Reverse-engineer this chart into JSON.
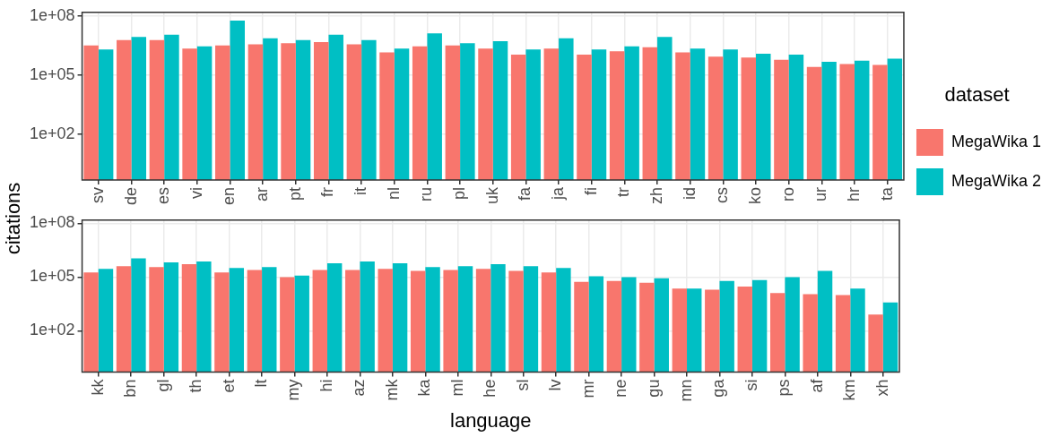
{
  "chart_data": [
    {
      "type": "bar",
      "ylabel": "citations",
      "legend_title": "dataset",
      "legend": "right",
      "log": true,
      "grid": true,
      "ylim": [
        0.5,
        150000000
      ],
      "yticks": [
        {
          "value": 100,
          "label": "1e+02"
        },
        {
          "value": 100000,
          "label": "1e+05"
        },
        {
          "value": 100000000,
          "label": "1e+08"
        }
      ],
      "categories": [
        "sv",
        "de",
        "es",
        "vi",
        "en",
        "ar",
        "pt",
        "fr",
        "it",
        "nl",
        "ru",
        "pl",
        "uk",
        "fa",
        "ja",
        "fi",
        "tr",
        "zh",
        "id",
        "cs",
        "ko",
        "ro",
        "ur",
        "hr",
        "ta"
      ],
      "series": [
        {
          "name": "MegaWika 1",
          "color": "#f8766d",
          "values": [
            3200000,
            5900000,
            5900000,
            2200000,
            3200000,
            3600000,
            4100000,
            4700000,
            3600000,
            1400000,
            2900000,
            3200000,
            2200000,
            1100000,
            2200000,
            1100000,
            1600000,
            2600000,
            1400000,
            870000,
            780000,
            600000,
            260000,
            370000,
            330000
          ]
        },
        {
          "name": "MegaWika 2",
          "color": "#00bfc4",
          "values": [
            2000000,
            8500000,
            11000000,
            2900000,
            58000000,
            7400000,
            5900000,
            11000000,
            5900000,
            2200000,
            13000000,
            4100000,
            5200000,
            2000000,
            7400000,
            2000000,
            2900000,
            8500000,
            2200000,
            2000000,
            1200000,
            1100000,
            480000,
            540000,
            680000
          ]
        }
      ]
    },
    {
      "type": "bar",
      "xlabel": "language",
      "log": true,
      "grid": true,
      "ylim": [
        0.5,
        150000000
      ],
      "yticks": [
        {
          "value": 100,
          "label": "1e+02"
        },
        {
          "value": 100000,
          "label": "1e+05"
        },
        {
          "value": 100000000,
          "label": "1e+08"
        }
      ],
      "categories": [
        "kk",
        "bn",
        "gl",
        "th",
        "et",
        "lt",
        "my",
        "hi",
        "az",
        "mk",
        "ka",
        "ml",
        "he",
        "sl",
        "lv",
        "mr",
        "ne",
        "gu",
        "mn",
        "ga",
        "si",
        "ps",
        "af",
        "km",
        "xh"
      ],
      "series": [
        {
          "color": "#f8766d",
          "values": [
            180000,
            410000,
            360000,
            520000,
            180000,
            250000,
            100000,
            250000,
            250000,
            290000,
            220000,
            250000,
            290000,
            220000,
            180000,
            54000,
            60000,
            48000,
            23000,
            20000,
            30000,
            13000,
            11000,
            10000,
            810
          ]
        },
        {
          "color": "#00bfc4",
          "values": [
            290000,
            1100000,
            660000,
            740000,
            320000,
            360000,
            120000,
            590000,
            740000,
            590000,
            360000,
            410000,
            520000,
            410000,
            320000,
            110000,
            98000,
            87000,
            23000,
            60000,
            68000,
            98000,
            220000,
            23000,
            3900
          ]
        }
      ]
    }
  ]
}
